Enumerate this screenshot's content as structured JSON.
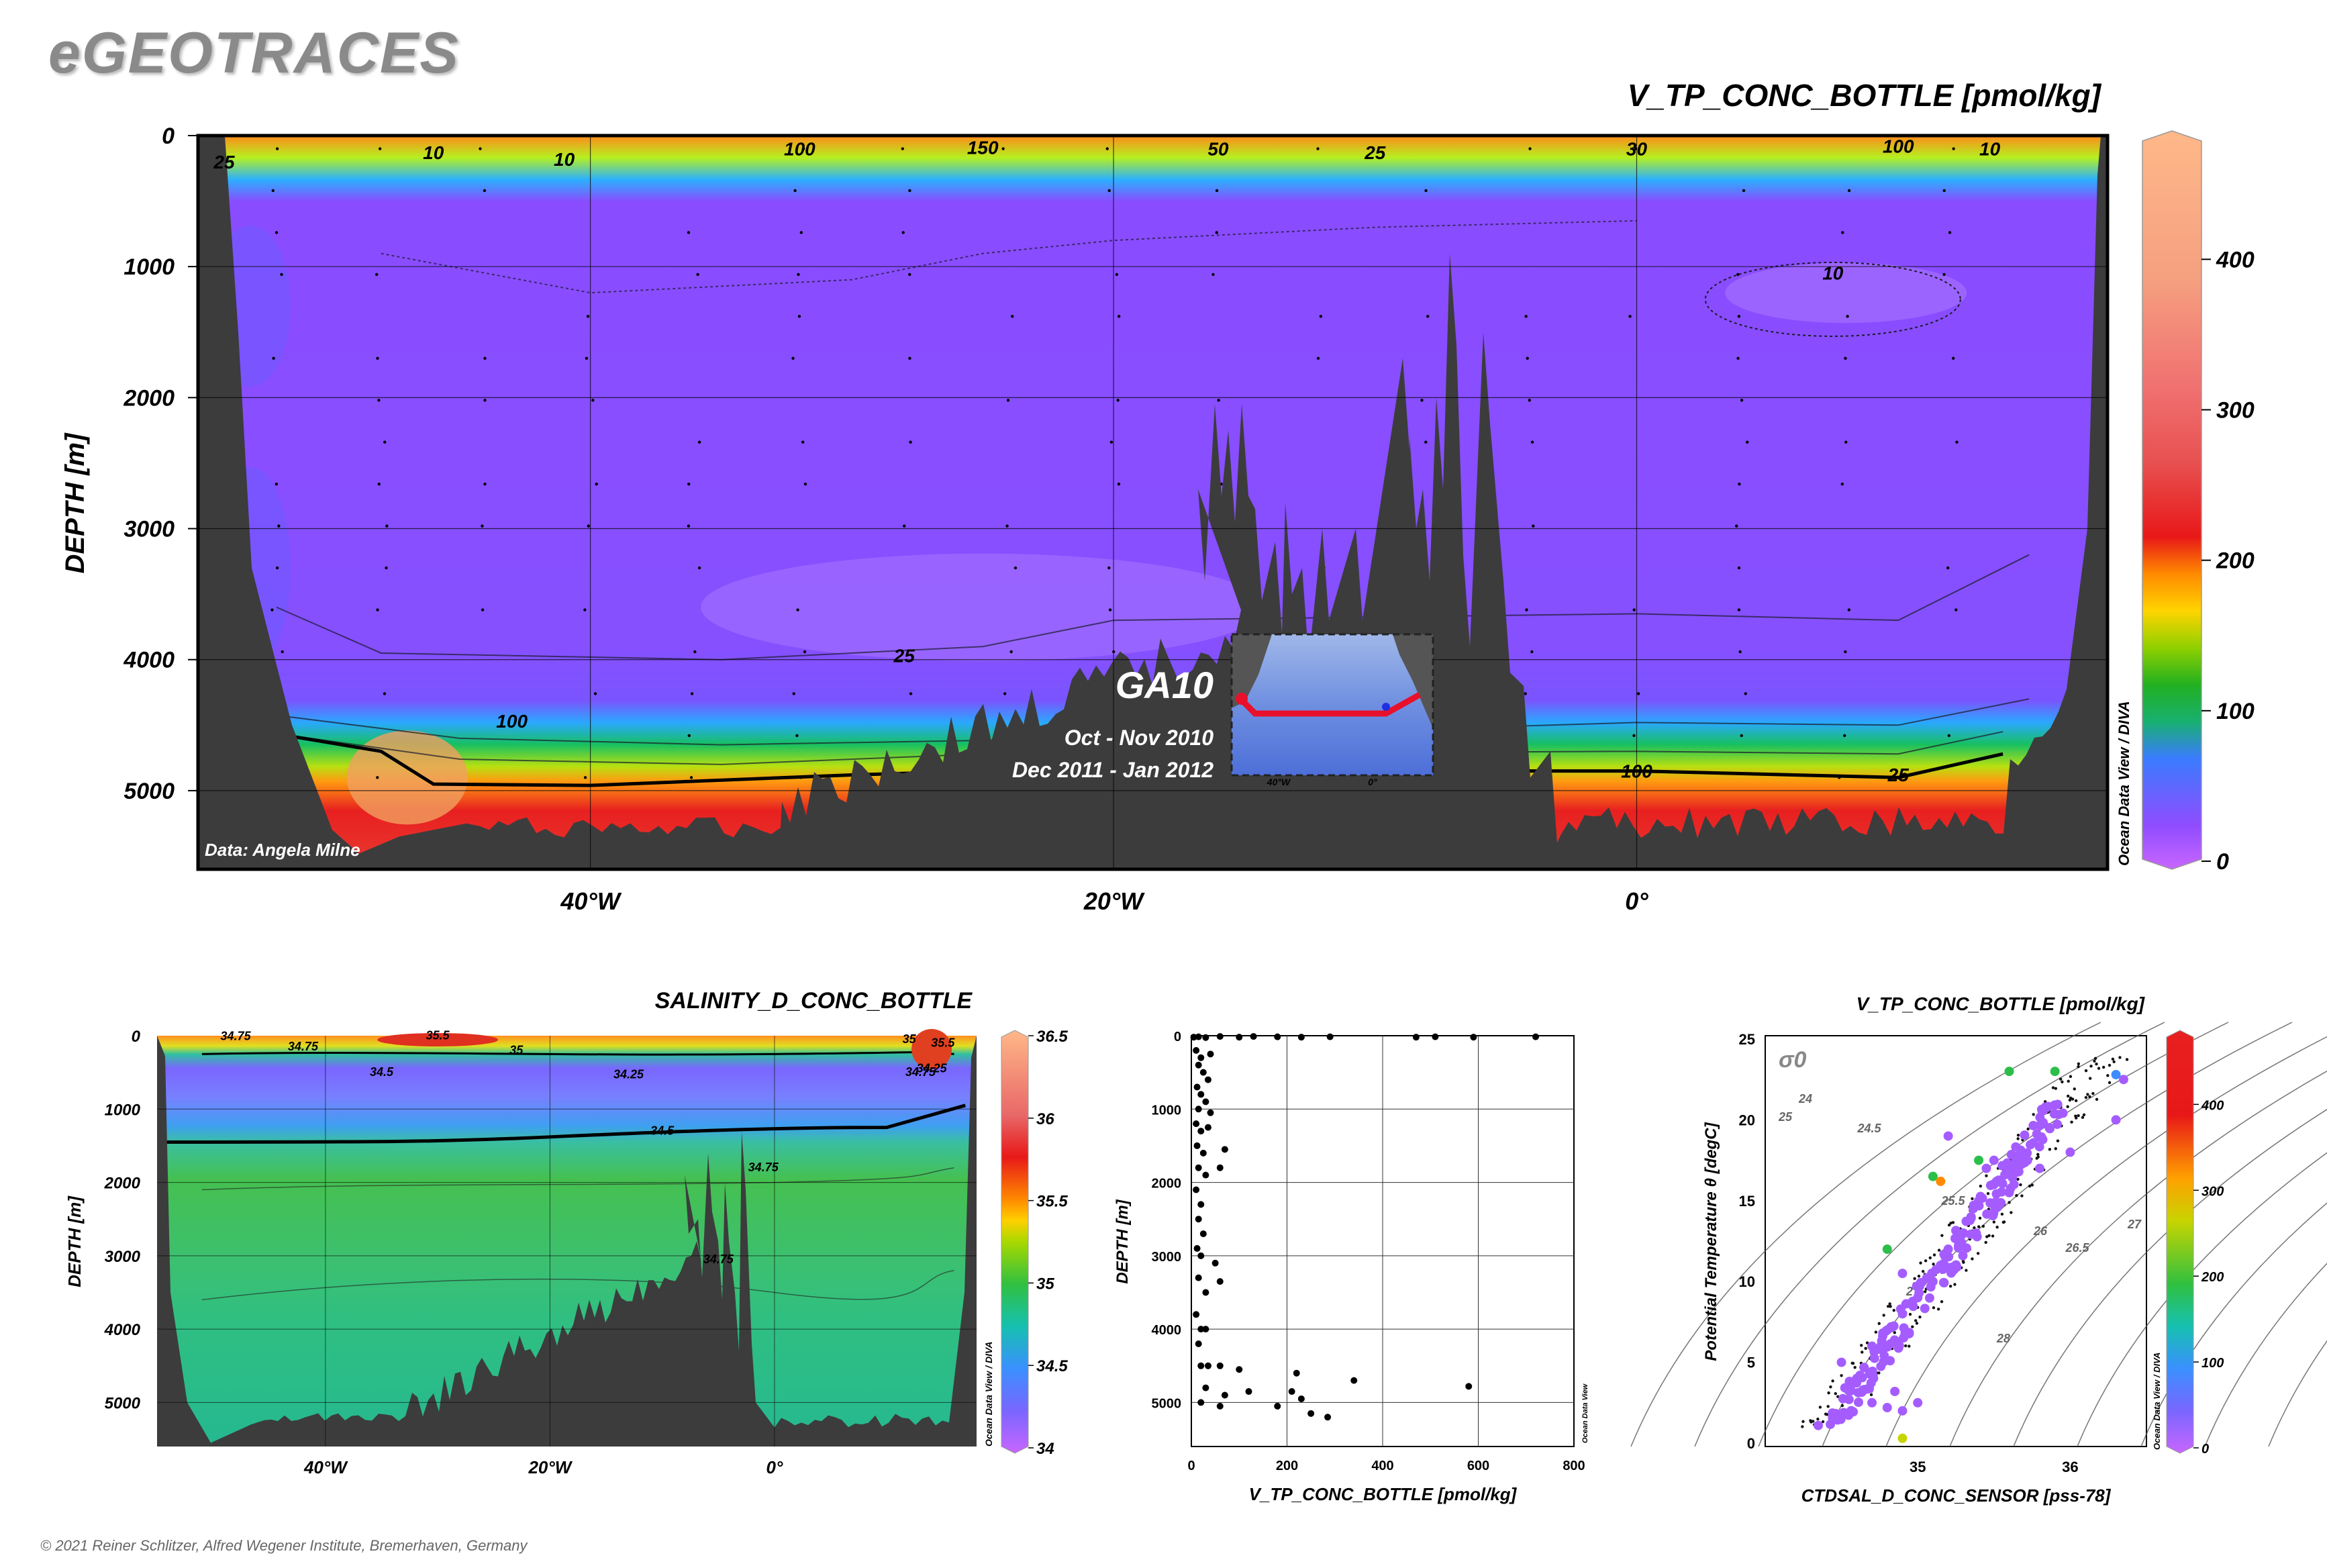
{
  "brand": "eGEOTRACES",
  "copyright": "© 2021 Reiner Schlitzer, Alfred Wegener Institute, Bremerhaven, Germany",
  "colors": {
    "bathymetry": "#3c3c3c",
    "contour": "#000000",
    "stations": "#000000",
    "ship_track": "#e8102a"
  },
  "chart_data": [
    {
      "type": "heatmap",
      "title": "V_TP_CONC_BOTTLE [pmol/kg]",
      "ylabel": "DEPTH [m]",
      "y_ticks": [
        "0",
        "1000",
        "2000",
        "3000",
        "4000",
        "5000"
      ],
      "x_ticks": [
        "40°W",
        "20°W",
        "0°"
      ],
      "ylim": [
        0,
        5600
      ],
      "xlim": [
        -55,
        18
      ],
      "colorbar": {
        "ticks": [
          "0",
          "100",
          "200",
          "300",
          "400"
        ],
        "range": [
          0,
          480
        ]
      },
      "contour_labels": [
        "25",
        "10",
        "10",
        "100",
        "150",
        "50",
        "25",
        "30",
        "100",
        "10",
        "10",
        "25",
        "100",
        "100",
        "25"
      ],
      "inset": {
        "section": "GA10",
        "cruise_1": "Oct - Nov 2010",
        "cruise_2": "Dec 2011 - Jan 2012",
        "lon_ticks": [
          "40°W",
          "0°"
        ]
      },
      "credit": "Data: Angela Milne",
      "watermark": "Ocean Data View / DIVA"
    },
    {
      "type": "heatmap",
      "title": "SALINITY_D_CONC_BOTTLE",
      "ylabel": "DEPTH [m]",
      "y_ticks": [
        "0",
        "1000",
        "2000",
        "3000",
        "4000",
        "5000"
      ],
      "x_ticks": [
        "40°W",
        "20°W",
        "0°"
      ],
      "colorbar": {
        "ticks": [
          "34",
          "34.5",
          "35",
          "35.5",
          "36",
          "36.5"
        ],
        "range": [
          34,
          36.5
        ]
      },
      "contour_labels": [
        "34.75",
        "35.5",
        "34.75",
        "35",
        "34.5",
        "34.25",
        "35",
        "35.5",
        "34.75",
        "34.5",
        "34.75",
        "34.75",
        "34.25"
      ],
      "watermark": "Ocean Data View / DIVA"
    },
    {
      "type": "scatter",
      "xlabel": "V_TP_CONC_BOTTLE [pmol/kg]",
      "ylabel": "DEPTH [m]",
      "x_ticks": [
        "0",
        "200",
        "400",
        "600",
        "800"
      ],
      "y_ticks": [
        "0",
        "1000",
        "2000",
        "3000",
        "4000",
        "5000"
      ],
      "xlim": [
        0,
        800
      ],
      "ylim": [
        5600,
        0
      ],
      "points": [
        [
          5,
          20
        ],
        [
          15,
          15
        ],
        [
          30,
          25
        ],
        [
          60,
          10
        ],
        [
          100,
          20
        ],
        [
          130,
          10
        ],
        [
          180,
          15
        ],
        [
          230,
          20
        ],
        [
          290,
          15
        ],
        [
          470,
          20
        ],
        [
          510,
          15
        ],
        [
          590,
          20
        ],
        [
          720,
          15
        ],
        [
          10,
          200
        ],
        [
          20,
          300
        ],
        [
          40,
          250
        ],
        [
          15,
          400
        ],
        [
          25,
          500
        ],
        [
          35,
          600
        ],
        [
          12,
          700
        ],
        [
          20,
          800
        ],
        [
          30,
          900
        ],
        [
          15,
          1000
        ],
        [
          40,
          1050
        ],
        [
          10,
          1200
        ],
        [
          20,
          1300
        ],
        [
          35,
          1250
        ],
        [
          12,
          1500
        ],
        [
          25,
          1600
        ],
        [
          70,
          1550
        ],
        [
          15,
          1800
        ],
        [
          30,
          1900
        ],
        [
          60,
          1800
        ],
        [
          10,
          2100
        ],
        [
          20,
          2300
        ],
        [
          15,
          2500
        ],
        [
          25,
          2700
        ],
        [
          12,
          2900
        ],
        [
          20,
          3000
        ],
        [
          50,
          3100
        ],
        [
          15,
          3300
        ],
        [
          30,
          3500
        ],
        [
          60,
          3350
        ],
        [
          10,
          3800
        ],
        [
          20,
          4000
        ],
        [
          30,
          4000
        ],
        [
          15,
          4200
        ],
        [
          20,
          4500
        ],
        [
          35,
          4500
        ],
        [
          60,
          4500
        ],
        [
          100,
          4550
        ],
        [
          220,
          4600
        ],
        [
          340,
          4700
        ],
        [
          580,
          4780
        ],
        [
          30,
          4800
        ],
        [
          70,
          4900
        ],
        [
          120,
          4850
        ],
        [
          210,
          4850
        ],
        [
          230,
          4950
        ],
        [
          20,
          5000
        ],
        [
          60,
          5050
        ],
        [
          180,
          5050
        ],
        [
          250,
          5150
        ],
        [
          285,
          5200
        ]
      ]
    },
    {
      "type": "scatter",
      "title": "V_TP_CONC_BOTTLE [pmol/kg]",
      "xlabel": "CTDSAL_D_CONC_SENSOR [pss-78]",
      "ylabel": "Potential Temperature θ [degC]",
      "x_ticks": [
        "35",
        "36"
      ],
      "y_ticks": [
        "0",
        "5",
        "10",
        "15",
        "20",
        "25"
      ],
      "xlim": [
        34.0,
        36.5
      ],
      "ylim": [
        0,
        25
      ],
      "isopycnal_symbol": "σ0",
      "isopycnal_labels": [
        "24",
        "24.5",
        "25",
        "25.5",
        "26",
        "26.5",
        "27",
        "27",
        "28"
      ],
      "colorbar": {
        "ticks": [
          "0",
          "100",
          "200",
          "300",
          "400"
        ],
        "range": [
          0,
          480
        ]
      },
      "points": [
        [
          34.9,
          0.3,
          250
        ],
        [
          34.6,
          4.0,
          20
        ],
        [
          34.5,
          5.0,
          20
        ],
        [
          34.55,
          3.5,
          20
        ],
        [
          34.7,
          2.5,
          30
        ],
        [
          34.8,
          2.2,
          30
        ],
        [
          34.9,
          2.0,
          30
        ],
        [
          35.0,
          2.5,
          30
        ],
        [
          34.85,
          3.2,
          20
        ],
        [
          34.7,
          6.0,
          20
        ],
        [
          34.8,
          7.0,
          20
        ],
        [
          34.9,
          8.0,
          20
        ],
        [
          35.0,
          9.0,
          20
        ],
        [
          35.1,
          10.0,
          20
        ],
        [
          35.15,
          11.0,
          20
        ],
        [
          35.2,
          12.0,
          20
        ],
        [
          35.3,
          13.0,
          20
        ],
        [
          35.35,
          14.0,
          20
        ],
        [
          35.4,
          15.0,
          20
        ],
        [
          35.5,
          16.0,
          20
        ],
        [
          35.45,
          17.0,
          20
        ],
        [
          35.5,
          17.5,
          20
        ],
        [
          35.6,
          15.5,
          20
        ],
        [
          35.8,
          17.0,
          20
        ],
        [
          36.0,
          18.0,
          20
        ],
        [
          36.3,
          20.0,
          20
        ],
        [
          36.35,
          22.5,
          20
        ],
        [
          35.2,
          19.0,
          20
        ],
        [
          34.9,
          10.5,
          30
        ],
        [
          34.8,
          12.0,
          200
        ],
        [
          35.1,
          16.5,
          200
        ],
        [
          35.4,
          17.5,
          200
        ],
        [
          35.6,
          23.0,
          200
        ],
        [
          35.9,
          23.0,
          150
        ],
        [
          36.3,
          22.8,
          60
        ],
        [
          35.15,
          16.2,
          300
        ]
      ]
    }
  ]
}
